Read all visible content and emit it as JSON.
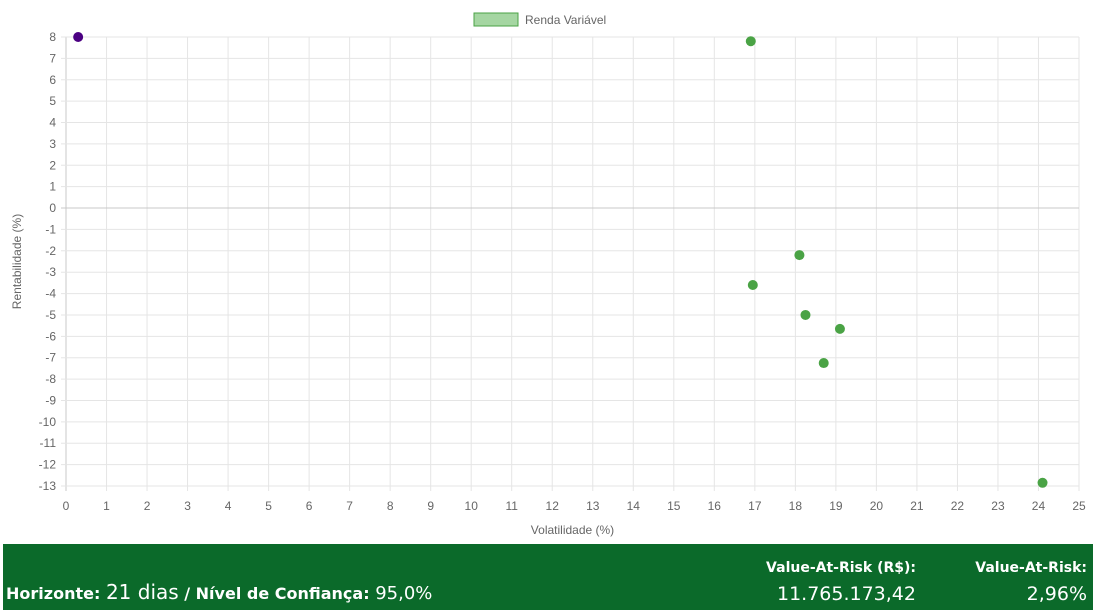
{
  "chart_data": {
    "type": "scatter",
    "title": "",
    "xlabel": "Volatilidade (%)",
    "ylabel": "Rentabilidade (%)",
    "xlim": [
      0,
      25
    ],
    "ylim": [
      -13,
      8
    ],
    "x_ticks": [
      "0",
      "1",
      "2",
      "3",
      "4",
      "5",
      "6",
      "7",
      "8",
      "9",
      "10",
      "11",
      "12",
      "13",
      "14",
      "15",
      "16",
      "17",
      "18",
      "19",
      "20",
      "21",
      "22",
      "23",
      "24",
      "25"
    ],
    "y_ticks": [
      "8",
      "7",
      "6",
      "5",
      "4",
      "3",
      "2",
      "1",
      "0",
      "-1",
      "-2",
      "-3",
      "-4",
      "-5",
      "-6",
      "-7",
      "-8",
      "-9",
      "-10",
      "-11",
      "-12",
      "-13"
    ],
    "grid": true,
    "legend": {
      "position": "top",
      "entries": [
        {
          "name": "Renda Variável",
          "color": "#4aa345"
        }
      ]
    },
    "series": [
      {
        "name": "Renda Variável",
        "color": "#4aa345",
        "points": [
          {
            "x": 16.9,
            "y": 7.8
          },
          {
            "x": 18.1,
            "y": -2.2
          },
          {
            "x": 16.95,
            "y": -3.6
          },
          {
            "x": 18.25,
            "y": -5.0
          },
          {
            "x": 19.1,
            "y": -5.65
          },
          {
            "x": 18.7,
            "y": -7.25
          },
          {
            "x": 24.1,
            "y": -12.85
          }
        ]
      },
      {
        "color": "#4b0082",
        "points": [
          {
            "x": 0.3,
            "y": 8.0
          }
        ]
      }
    ]
  },
  "footer": {
    "horizon_label": "Horizonte:",
    "horizon_value": "21 dias",
    "confidence_label": "/ Nível de Confiança:",
    "confidence_value": "95,0%",
    "var_rs_label": "Value-At-Risk (R$):",
    "var_rs_value": "11.765.173,42",
    "var_pct_label": "Value-At-Risk:",
    "var_pct_value": "2,96%",
    "background_color": "#0b6a2a"
  }
}
